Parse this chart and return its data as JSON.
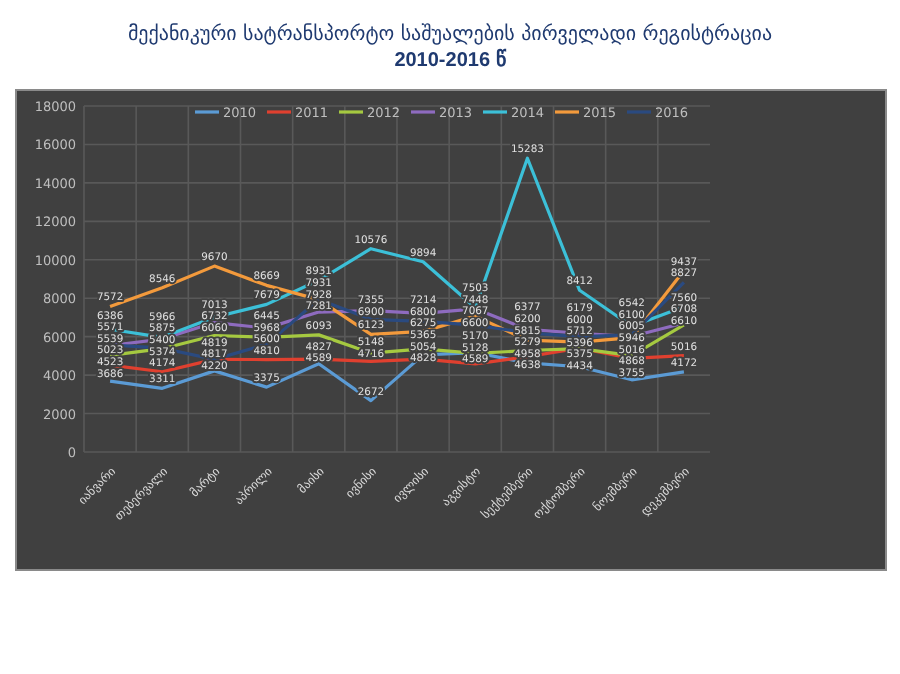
{
  "chart_data": {
    "type": "line",
    "title": "მექანიკური სატრანსპორტო საშუალების პირველადი რეგისტრაცია",
    "subtitle": "2010-2016 წ",
    "categories": [
      "იანვარი",
      "თებერვალი",
      "მარტი",
      "აპრილი",
      "მაისი",
      "ივნისი",
      "ივლისი",
      "აგვისტო",
      "სექტემბერი",
      "ოქტომბერი",
      "ნოემბერი",
      "დეკემბერი"
    ],
    "series": [
      {
        "name": "2010",
        "color": "#5b9bd5",
        "values": [
          3686,
          3311,
          4220,
          3375,
          4589,
          2672,
          5054,
          5170,
          4638,
          4434,
          3755,
          4172
        ]
      },
      {
        "name": "2011",
        "color": "#e0402f",
        "values": [
          4523,
          4174,
          4817,
          4810,
          4827,
          4716,
          4828,
          4589,
          4958,
          5396,
          4868,
          5016
        ]
      },
      {
        "name": "2012",
        "color": "#a5c940",
        "values": [
          5023,
          5374,
          6060,
          5968,
          6093,
          5148,
          5365,
          5128,
          5279,
          5375,
          5016,
          6610
        ]
      },
      {
        "name": "2013",
        "color": "#8e6bbf",
        "values": [
          5539,
          5875,
          6732,
          6445,
          7281,
          7355,
          7214,
          7448,
          6377,
          6179,
          6005,
          6708
        ]
      },
      {
        "name": "2014",
        "color": "#3cc0d8",
        "values": [
          6386,
          5966,
          7013,
          7679,
          8931,
          10576,
          9894,
          7503,
          15283,
          8412,
          6542,
          7560
        ]
      },
      {
        "name": "2015",
        "color": "#f39a3c",
        "values": [
          7572,
          8546,
          9670,
          8669,
          7928,
          6123,
          6275,
          7067,
          5815,
          5712,
          5946,
          9437
        ]
      },
      {
        "name": "2016",
        "color": "#2a4a80",
        "values": [
          5571,
          5400,
          4819,
          5600,
          7931,
          6900,
          6800,
          6600,
          6200,
          6000,
          6100,
          8827
        ]
      }
    ],
    "ylim": [
      0,
      18000
    ],
    "yticks": [
      0,
      2000,
      4000,
      6000,
      8000,
      10000,
      12000,
      14000,
      16000,
      18000
    ],
    "grid": true,
    "legend": "top",
    "data_labels": true,
    "marker": "none"
  }
}
